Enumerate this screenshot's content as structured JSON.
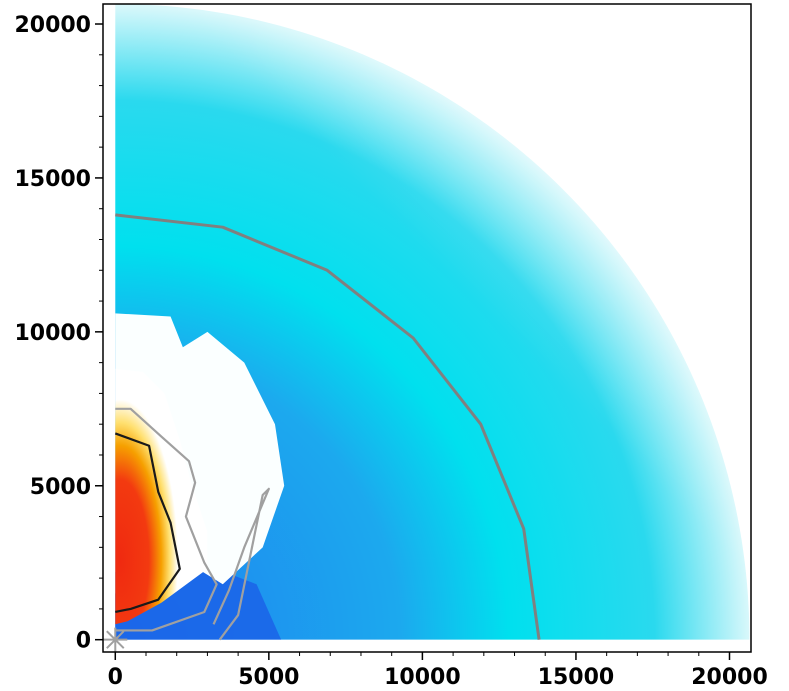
{
  "chart_data": {
    "type": "heatmap",
    "title": "",
    "xlabel": "",
    "ylabel": "",
    "xlim": [
      -400,
      20700
    ],
    "ylim": [
      -400,
      20650
    ],
    "x_ticks": [
      0,
      5000,
      10000,
      15000,
      20000
    ],
    "y_ticks": [
      0,
      5000,
      10000,
      15000,
      20000
    ],
    "x_tick_labels": [
      "0",
      "5000",
      "10000",
      "15000",
      "20000"
    ],
    "y_tick_labels": [
      "0",
      "5000",
      "10000",
      "15000",
      "20000"
    ],
    "grid": false,
    "domain_radius": 20650,
    "contours": [
      {
        "name": "",
        "color": "#808080",
        "points": [
          [
            0,
            13800
          ],
          [
            3500,
            13400
          ],
          [
            6900,
            12000
          ],
          [
            9700,
            9800
          ],
          [
            11900,
            7000
          ],
          [
            13300,
            3600
          ],
          [
            13800,
            0
          ]
        ]
      },
      {
        "name": "",
        "color": "#1a1a1a",
        "points": [
          [
            0,
            6700
          ],
          [
            1100,
            6300
          ],
          [
            1400,
            4800
          ],
          [
            1800,
            3800
          ],
          [
            2100,
            2300
          ],
          [
            1400,
            1300
          ],
          [
            500,
            1000
          ],
          [
            0,
            900
          ]
        ]
      },
      {
        "name": "",
        "color": "#a0a0a0",
        "points": [
          [
            0,
            7500
          ],
          [
            500,
            7500
          ],
          [
            1500,
            6600
          ],
          [
            2400,
            5800
          ],
          [
            2600,
            5100
          ],
          [
            2300,
            4000
          ],
          [
            2900,
            2500
          ],
          [
            3300,
            1800
          ],
          [
            2900,
            900
          ],
          [
            1200,
            300
          ],
          [
            0,
            300
          ]
        ]
      },
      {
        "name": "",
        "color": "#a0a0a0",
        "points": [
          [
            3400,
            0
          ],
          [
            4000,
            800
          ],
          [
            4800,
            4700
          ],
          [
            5000,
            4900
          ],
          [
            4200,
            3000
          ],
          [
            3700,
            1600
          ],
          [
            3200,
            500
          ]
        ]
      }
    ]
  }
}
